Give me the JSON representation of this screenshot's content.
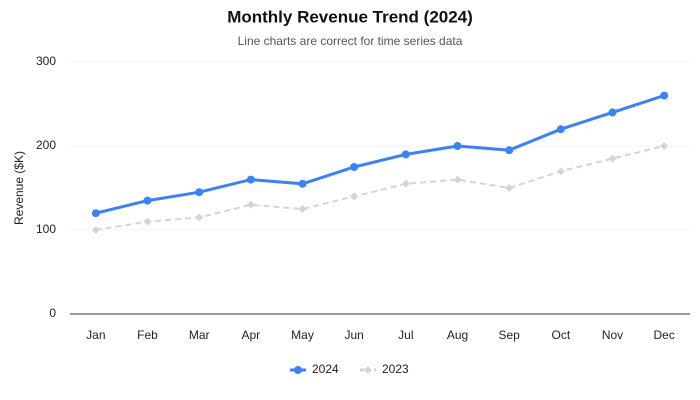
{
  "chart_data": {
    "type": "line",
    "title": "Monthly Revenue Trend (2024)",
    "subtitle": "Line charts are correct for time series data",
    "y_label": "Revenue ($K)",
    "categories": [
      "Jan",
      "Feb",
      "Mar",
      "Apr",
      "May",
      "Jun",
      "Jul",
      "Aug",
      "Sep",
      "Oct",
      "Nov",
      "Dec"
    ],
    "series": [
      {
        "name": "2024",
        "color": "#3b82f6",
        "style": "solid",
        "marker": "circle",
        "values": [
          120,
          135,
          145,
          160,
          155,
          175,
          190,
          200,
          195,
          220,
          240,
          260
        ]
      },
      {
        "name": "2023",
        "color": "#d1d5db",
        "style": "dashed",
        "marker": "diamond",
        "values": [
          100,
          110,
          115,
          130,
          125,
          140,
          155,
          160,
          150,
          170,
          185,
          200
        ]
      }
    ],
    "ylim": [
      0,
      300
    ],
    "yticks": [
      0,
      100,
      200,
      300
    ],
    "grid": true,
    "legend": "bottom"
  }
}
